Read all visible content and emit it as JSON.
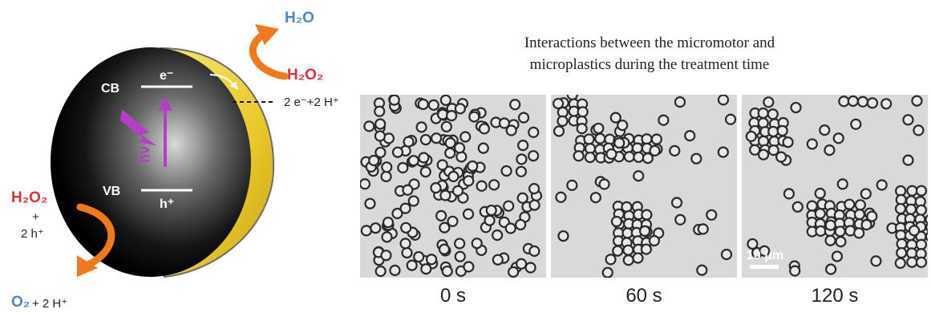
{
  "schematic": {
    "top_product": "H₂O",
    "top_reactant": "H₂O₂",
    "electron_label": "e⁻",
    "hole_label": "h⁺",
    "cb_label": "CB",
    "vb_label": "VB",
    "light_label": "hν",
    "reduction_eq": "2 e⁻+2 H⁺",
    "bottom_reactant": "H₂O₂",
    "bottom_plus": "+",
    "bottom_holes": "2 h⁺",
    "bottom_product": "O₂",
    "bottom_product_suffix": " + 2 H⁺",
    "colors": {
      "shell": "#f1d94a",
      "core": "#111111",
      "arrow": "#f07a1a",
      "light": "#b53fc6",
      "h2o2": "#d4323d",
      "h2o": "#4f86c6"
    }
  },
  "figure": {
    "caption_line1": "Interactions between the micromotor and",
    "caption_line2": "microplastics during the treatment time",
    "panels": [
      {
        "time_label": "0 s"
      },
      {
        "time_label": "60 s"
      },
      {
        "time_label": "120 s"
      }
    ],
    "scale_bar": "10 μm"
  }
}
